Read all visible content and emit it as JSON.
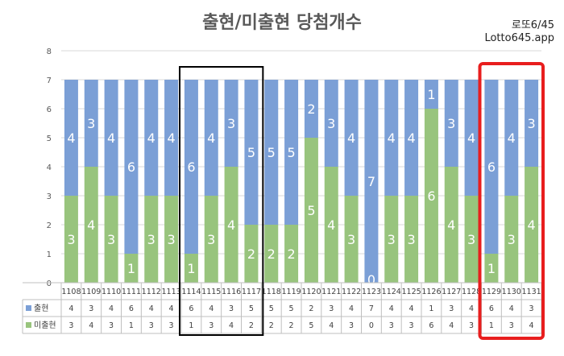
{
  "title": "출현/미출현 당첨개수",
  "brand": {
    "line1": "로또6/45",
    "line2": "Lotto645.app"
  },
  "colors": {
    "appeared": "#7b9fd6",
    "not_appeared": "#98c47d",
    "highlight_black": "#000000",
    "highlight_red": "#e81e1e"
  },
  "chart_data": {
    "type": "bar",
    "stacked": true,
    "categories": [
      "1108",
      "1109",
      "1110",
      "1111",
      "1112",
      "1113",
      "1114",
      "1115",
      "1116",
      "1117",
      "1118",
      "1119",
      "1120",
      "1121",
      "1122",
      "1123",
      "1124",
      "1125",
      "1126",
      "1127",
      "1128",
      "1129",
      "1130",
      "1131"
    ],
    "series": [
      {
        "name": "미출현",
        "values": [
          3,
          4,
          3,
          1,
          3,
          3,
          1,
          3,
          4,
          2,
          2,
          2,
          5,
          4,
          3,
          0,
          3,
          3,
          6,
          4,
          3,
          1,
          3,
          4
        ]
      },
      {
        "name": "출현",
        "values": [
          4,
          3,
          4,
          6,
          4,
          4,
          6,
          4,
          3,
          5,
          5,
          5,
          2,
          3,
          4,
          7,
          4,
          4,
          1,
          3,
          4,
          6,
          4,
          3
        ]
      }
    ],
    "ylim": [
      0,
      8
    ],
    "yticks": [
      "0",
      "1",
      "2",
      "3",
      "4",
      "5",
      "6",
      "7",
      "8"
    ],
    "grid": true,
    "legend": "table-below",
    "highlights": [
      {
        "from": "1114",
        "to": "1117",
        "color": "black"
      },
      {
        "from": "1129",
        "to": "1131",
        "color": "red"
      }
    ]
  }
}
